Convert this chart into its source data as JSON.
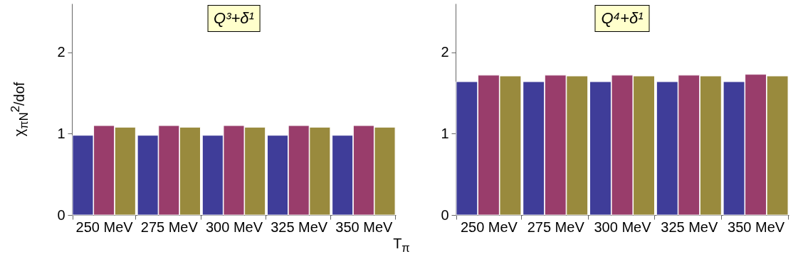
{
  "chart_data": [
    {
      "type": "bar",
      "title": "Q³+δ¹",
      "ylabel": "χ$_{πN}$$^{2}$/dof",
      "xlabel": "T$_{π}$",
      "categories": [
        "250 MeV",
        "275 MeV",
        "300 MeV",
        "325 MeV",
        "350 MeV"
      ],
      "series": [
        {
          "color": "#3f3d99",
          "values": [
            0.98,
            0.98,
            0.98,
            0.98,
            0.98
          ]
        },
        {
          "color": "#993d6b",
          "values": [
            1.1,
            1.1,
            1.1,
            1.1,
            1.1
          ]
        },
        {
          "color": "#998a3d",
          "values": [
            1.08,
            1.08,
            1.08,
            1.08,
            1.08
          ]
        }
      ],
      "ylim": [
        0,
        2.6
      ],
      "yticks": [
        0,
        1,
        2
      ]
    },
    {
      "type": "bar",
      "title": "Q⁴+δ¹",
      "categories": [
        "250 MeV",
        "275 MeV",
        "300 MeV",
        "325 MeV",
        "350 MeV"
      ],
      "series": [
        {
          "color": "#3f3d99",
          "values": [
            1.64,
            1.64,
            1.64,
            1.64,
            1.64
          ]
        },
        {
          "color": "#993d6b",
          "values": [
            1.72,
            1.72,
            1.72,
            1.72,
            1.73
          ]
        },
        {
          "color": "#998a3d",
          "values": [
            1.71,
            1.71,
            1.71,
            1.71,
            1.71
          ]
        }
      ],
      "ylim": [
        0,
        2.6
      ],
      "yticks": [
        0,
        1,
        2
      ]
    }
  ]
}
